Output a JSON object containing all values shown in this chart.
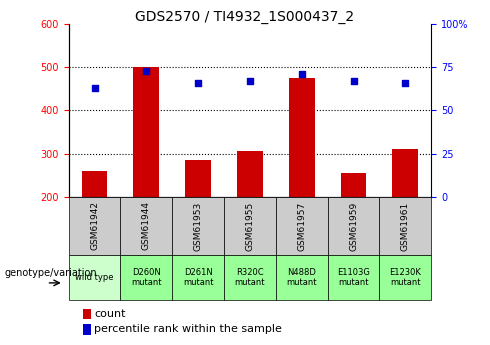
{
  "title": "GDS2570 / TI4932_1S000437_2",
  "categories": [
    "GSM61942",
    "GSM61944",
    "GSM61953",
    "GSM61955",
    "GSM61957",
    "GSM61959",
    "GSM61961"
  ],
  "genotype": [
    "wild type",
    "D260N\nmutant",
    "D261N\nmutant",
    "R320C\nmutant",
    "N488D\nmutant",
    "E1103G\nmutant",
    "E1230K\nmutant"
  ],
  "counts": [
    260,
    500,
    285,
    305,
    475,
    255,
    310
  ],
  "percentile_ranks": [
    63,
    73,
    66,
    67,
    71,
    67,
    66
  ],
  "ylim_left": [
    200,
    600
  ],
  "ylim_right": [
    0,
    100
  ],
  "yticks_left": [
    200,
    300,
    400,
    500,
    600
  ],
  "yticks_right": [
    0,
    25,
    50,
    75,
    100
  ],
  "ytick_labels_right": [
    "0",
    "25",
    "50",
    "75",
    "100%"
  ],
  "bar_color": "#CC0000",
  "dot_color": "#0000CC",
  "header_bg": "#CCCCCC",
  "genotype_bg_wild": "#CCFFCC",
  "genotype_bg_mutant": "#99FF99",
  "bar_width": 0.5,
  "legend_label_count": "count",
  "legend_label_percentile": "percentile rank within the sample",
  "genotype_label": "genotype/variation",
  "title_fontsize": 10,
  "tick_fontsize": 7,
  "legend_fontsize": 8
}
